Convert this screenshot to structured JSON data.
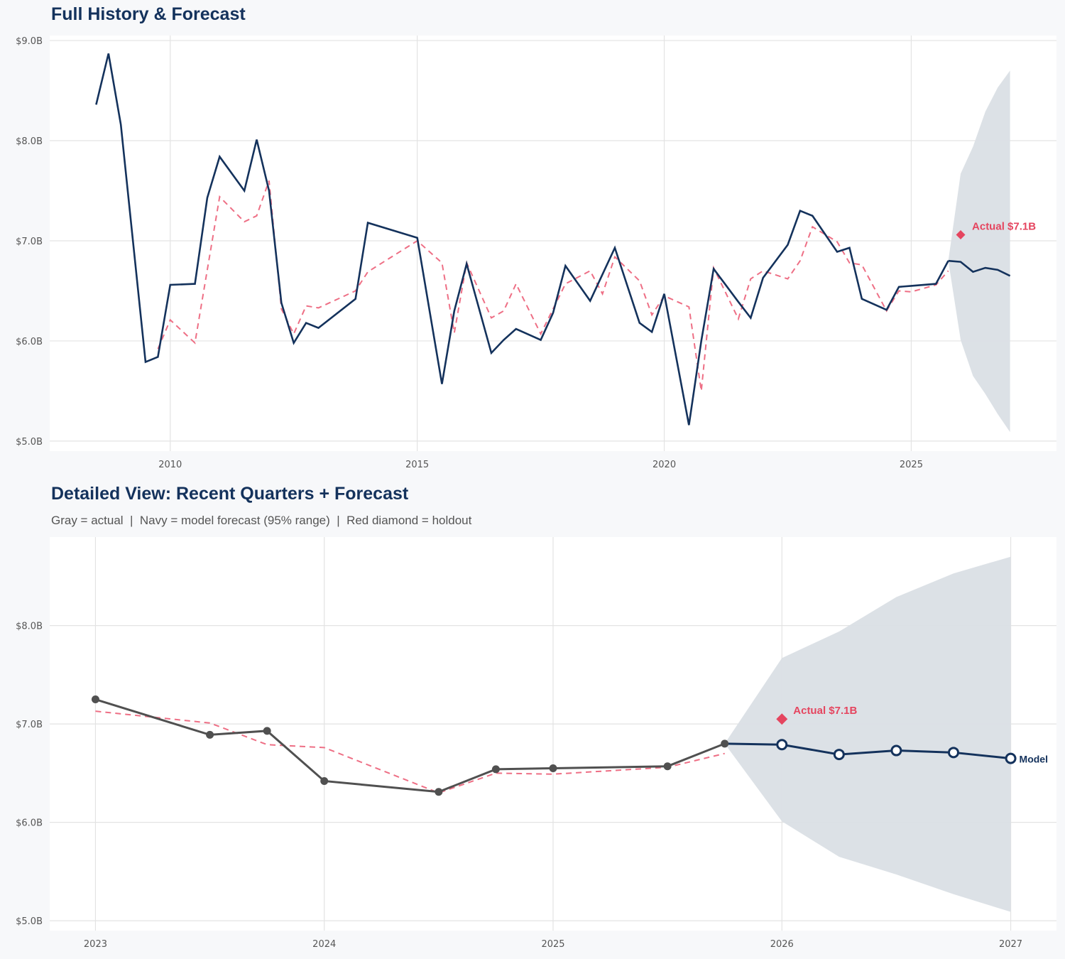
{
  "chart_data": [
    {
      "type": "line",
      "title": "Full History & Forecast",
      "xlim": [
        2007.56,
        2027.94
      ],
      "ylim": [
        4.9,
        9.05
      ],
      "grid": true,
      "x_ticks": [
        2010,
        2015,
        2020,
        2025
      ],
      "x_tick_labels": [
        "2010",
        "2015",
        "2020",
        "2025"
      ],
      "y_ticks": [
        5,
        6,
        7,
        8,
        9
      ],
      "y_tick_labels": [
        "$5.0B",
        "$6.0B",
        "$7.0B",
        "$8.0B",
        "$9.0B"
      ],
      "actual": {
        "x": [
          2008.5,
          2008.75,
          2009,
          2009.5,
          2009.75,
          2010,
          2010.5,
          2010.75,
          2011,
          2011.5,
          2011.75,
          2012,
          2012.25,
          2012.5,
          2012.75,
          2013,
          2013.75,
          2014,
          2015,
          2015.5,
          2015.75,
          2016,
          2016.5,
          2016.75,
          2017,
          2017.5,
          2017.75,
          2018,
          2018.5,
          2019,
          2019.5,
          2019.75,
          2020,
          2020.5,
          2020.75,
          2021,
          2021.5,
          2021.75,
          2022,
          2022.5,
          2022.75,
          2023,
          2023.5,
          2023.75,
          2024,
          2024.5,
          2024.75,
          2025,
          2025.5,
          2025.75
        ],
        "y": [
          8.36,
          8.87,
          8.16,
          5.79,
          5.84,
          6.56,
          6.57,
          7.43,
          7.84,
          7.5,
          8.01,
          7.5,
          6.38,
          5.98,
          6.18,
          6.13,
          6.42,
          7.18,
          7.03,
          5.57,
          6.3,
          6.77,
          5.88,
          6.01,
          6.12,
          6.01,
          6.28,
          6.75,
          6.4,
          6.93,
          6.18,
          6.09,
          6.47,
          5.16,
          6.0,
          6.72,
          6.39,
          6.23,
          6.63,
          6.96,
          7.3,
          7.25,
          6.89,
          6.93,
          6.42,
          6.31,
          6.54,
          6.55,
          6.57,
          6.8
        ],
        "color": "#14325c"
      },
      "fitted": {
        "x": [
          2009.75,
          2010,
          2010.5,
          2011,
          2011.5,
          2011.75,
          2012,
          2012.25,
          2012.5,
          2012.75,
          2013,
          2013.75,
          2014,
          2015,
          2015.5,
          2015.75,
          2016,
          2016.5,
          2016.75,
          2017,
          2017.5,
          2017.75,
          2018,
          2018.5,
          2018.75,
          2019,
          2019.5,
          2019.75,
          2020,
          2020.5,
          2020.75,
          2021,
          2021.5,
          2021.75,
          2022,
          2022.5,
          2022.75,
          2023,
          2023.5,
          2023.75,
          2024,
          2024.5,
          2024.75,
          2025,
          2025.5,
          2025.75
        ],
        "y": [
          5.92,
          6.21,
          5.98,
          7.44,
          7.19,
          7.25,
          7.6,
          6.32,
          6.07,
          6.35,
          6.33,
          6.5,
          6.69,
          7.0,
          6.78,
          6.08,
          6.78,
          6.23,
          6.3,
          6.57,
          6.07,
          6.32,
          6.57,
          6.7,
          6.47,
          6.84,
          6.6,
          6.26,
          6.45,
          6.34,
          5.5,
          6.73,
          6.22,
          6.62,
          6.7,
          6.62,
          6.8,
          7.14,
          6.99,
          6.78,
          6.76,
          6.3,
          6.5,
          6.49,
          6.56,
          6.7
        ],
        "color": "#ee6f85"
      },
      "forecast": {
        "x": [
          2025.75,
          2026,
          2026.25,
          2026.5,
          2026.75,
          2027
        ],
        "y": [
          6.8,
          6.79,
          6.69,
          6.73,
          6.71,
          6.65
        ],
        "upper": [
          6.8,
          7.67,
          7.94,
          8.29,
          8.53,
          8.7
        ],
        "lower": [
          6.8,
          6.01,
          5.65,
          5.47,
          5.27,
          5.09
        ],
        "color": "#14325c",
        "band_color": "#dadfe5"
      },
      "holdout": {
        "x": 2026,
        "y": 7.06,
        "label": "Actual $7.1B",
        "color": "#e5455f"
      }
    },
    {
      "type": "line",
      "title": "Detailed View: Recent Quarters + Forecast",
      "subtitle": "Gray = actual  |  Navy = model forecast (95% range)  |  Red diamond = holdout",
      "xlim": [
        2022.8,
        2027.2
      ],
      "ylim": [
        4.9,
        8.9
      ],
      "grid": true,
      "x_ticks": [
        2023,
        2024,
        2025,
        2026,
        2027
      ],
      "x_tick_labels": [
        "2023",
        "2024",
        "2025",
        "2026",
        "2027"
      ],
      "y_ticks": [
        5,
        6,
        7,
        8
      ],
      "y_tick_labels": [
        "$5.0B",
        "$6.0B",
        "$7.0B",
        "$8.0B"
      ],
      "actual": {
        "x": [
          2023,
          2023.5,
          2023.75,
          2024,
          2024.5,
          2024.75,
          2025,
          2025.5,
          2025.75
        ],
        "y": [
          7.25,
          6.89,
          6.93,
          6.42,
          6.31,
          6.54,
          6.55,
          6.57,
          6.8
        ],
        "color": "#505050"
      },
      "fitted": {
        "x": [
          2023,
          2023.5,
          2023.75,
          2024,
          2024.5,
          2024.75,
          2025,
          2025.5,
          2025.75
        ],
        "y": [
          7.13,
          7.01,
          6.79,
          6.76,
          6.3,
          6.5,
          6.49,
          6.56,
          6.7
        ],
        "color": "#ee6f85"
      },
      "forecast": {
        "x": [
          2025.75,
          2026,
          2026.25,
          2026.5,
          2026.75,
          2027
        ],
        "y": [
          6.8,
          6.79,
          6.69,
          6.73,
          6.71,
          6.65
        ],
        "upper": [
          6.8,
          7.67,
          7.94,
          8.29,
          8.53,
          8.7
        ],
        "lower": [
          6.8,
          6.01,
          5.65,
          5.47,
          5.27,
          5.09
        ],
        "color": "#14325c",
        "band_color": "#dadfe5",
        "label": "Model"
      },
      "holdout": {
        "x": 2026,
        "y": 7.05,
        "label": "Actual $7.1B",
        "color": "#e5455f"
      }
    }
  ]
}
